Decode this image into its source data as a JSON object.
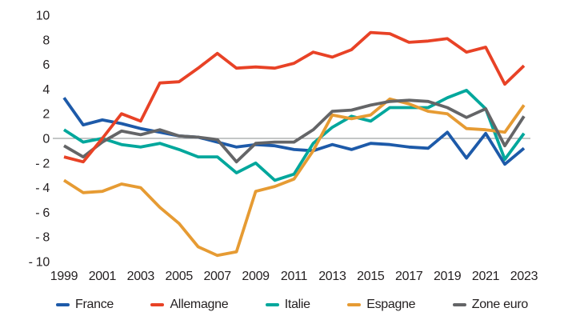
{
  "chart_data": {
    "type": "line",
    "title": "",
    "xlabel": "",
    "ylabel": "",
    "unit_hint": "percent",
    "x": [
      1999,
      2000,
      2001,
      2002,
      2003,
      2004,
      2005,
      2006,
      2007,
      2008,
      2009,
      2010,
      2011,
      2012,
      2013,
      2014,
      2015,
      2016,
      2017,
      2018,
      2019,
      2020,
      2021,
      2022,
      2023
    ],
    "x_tick_labels": [
      "1999",
      "2001",
      "2003",
      "2005",
      "2007",
      "2009",
      "2011",
      "2013",
      "2015",
      "2017",
      "2019",
      "2021",
      "2023"
    ],
    "y_ticks": [
      10,
      8,
      6,
      4,
      2,
      0,
      -2,
      -4,
      -6,
      -8,
      -10
    ],
    "ylim": [
      -10,
      10
    ],
    "grid": "zero-line-only",
    "legend_position": "bottom",
    "zero_line_color": "#8a8c8e",
    "series": [
      {
        "name": "France",
        "color": "#1d5aa9",
        "values": [
          3.3,
          1.1,
          1.5,
          1.2,
          0.8,
          0.5,
          0.2,
          0.1,
          -0.3,
          -0.7,
          -0.5,
          -0.6,
          -0.9,
          -1.0,
          -0.5,
          -0.9,
          -0.4,
          -0.5,
          -0.7,
          -0.8,
          0.5,
          -1.6,
          0.4,
          -2.1,
          -0.8
        ]
      },
      {
        "name": "Allemagne",
        "color": "#e84226",
        "values": [
          -1.5,
          -1.9,
          0.0,
          2.0,
          1.4,
          4.5,
          4.6,
          5.7,
          6.9,
          5.7,
          5.8,
          5.7,
          6.1,
          7.0,
          6.6,
          7.2,
          8.6,
          8.5,
          7.8,
          7.9,
          8.1,
          7.0,
          7.4,
          4.4,
          5.9
        ]
      },
      {
        "name": "Italie",
        "color": "#00a79c",
        "values": [
          0.7,
          -0.3,
          0.0,
          -0.5,
          -0.7,
          -0.4,
          -0.9,
          -1.5,
          -1.5,
          -2.8,
          -2.0,
          -3.4,
          -2.9,
          -0.4,
          0.9,
          1.8,
          1.4,
          2.5,
          2.5,
          2.5,
          3.3,
          3.9,
          2.4,
          -1.7,
          0.4
        ]
      },
      {
        "name": "Espagne",
        "color": "#e69b33",
        "values": [
          -3.4,
          -4.4,
          -4.3,
          -3.7,
          -4.0,
          -5.6,
          -6.9,
          -8.8,
          -9.5,
          -9.2,
          -4.3,
          -3.9,
          -3.3,
          -1.0,
          1.9,
          1.6,
          1.9,
          3.2,
          2.8,
          2.2,
          2.0,
          0.8,
          0.7,
          0.5,
          2.7
        ]
      },
      {
        "name": "Zone euro",
        "color": "#646567",
        "values": [
          -0.6,
          -1.5,
          -0.3,
          0.6,
          0.3,
          0.7,
          0.2,
          0.1,
          -0.1,
          -1.9,
          -0.4,
          -0.3,
          -0.3,
          0.7,
          2.2,
          2.3,
          2.7,
          3.0,
          3.1,
          3.0,
          2.5,
          1.7,
          2.4,
          -0.6,
          1.8
        ]
      }
    ]
  }
}
